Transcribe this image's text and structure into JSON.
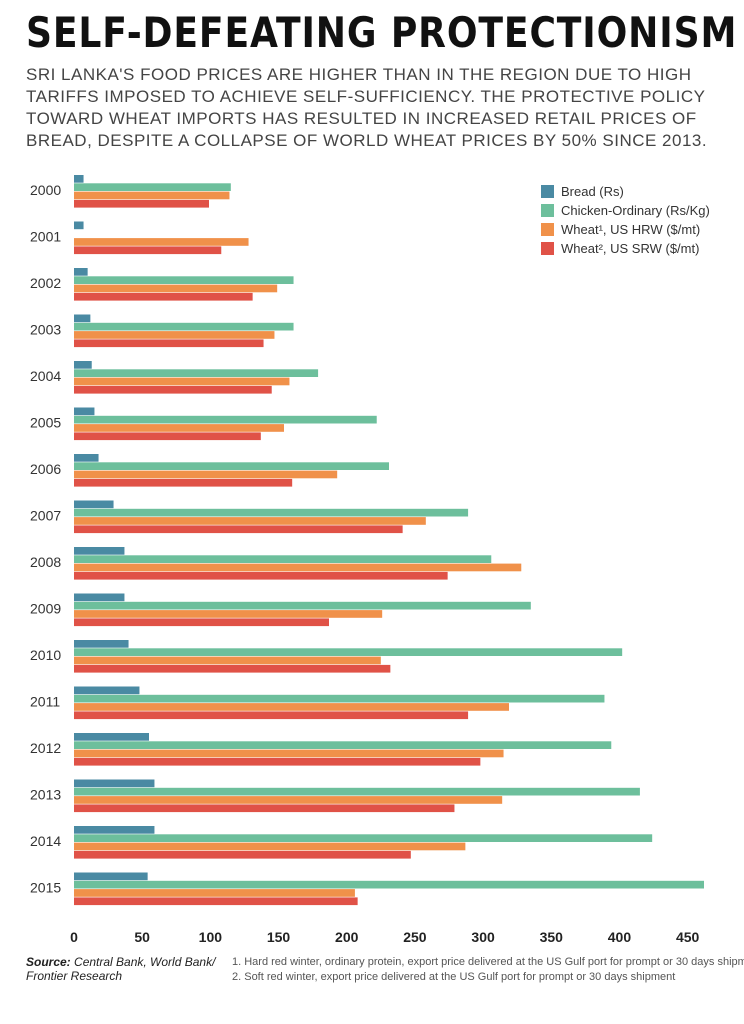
{
  "header": {
    "title": "SELF-DEFEATING PROTECTIONISM",
    "subtitle": "SRI LANKA'S FOOD PRICES ARE HIGHER THAN IN THE REGION DUE TO HIGH TARIFFS IMPOSED TO ACHIEVE SELF-SUFFICIENCY. THE PROTECTIVE POLICY TOWARD WHEAT IMPORTS HAS RESULTED IN INCREASED RETAIL PRICES OF BREAD, DESPITE A COLLAPSE OF WORLD WHEAT PRICES BY 50% SINCE 2013."
  },
  "footer": {
    "source_label": "Source:",
    "source_text": " Central Bank, World Bank/ Frontier Research",
    "notes": [
      "1. Hard red winter, ordinary protein, export price delivered at the US Gulf port for prompt or 30 days shipment",
      "2. Soft red winter, export price delivered at the US Gulf port for prompt or 30 days shipment"
    ]
  },
  "chart_data": {
    "type": "bar",
    "orientation": "horizontal",
    "categories": [
      "2000",
      "2001",
      "2002",
      "2003",
      "2004",
      "2005",
      "2006",
      "2007",
      "2008",
      "2009",
      "2010",
      "2011",
      "2012",
      "2013",
      "2014",
      "2015"
    ],
    "series": [
      {
        "name": "Bread (Rs)",
        "color": "#4a8aa3",
        "values": [
          7,
          7,
          10,
          12,
          13,
          15,
          18,
          29,
          37,
          37,
          40,
          48,
          55,
          59,
          59,
          54
        ]
      },
      {
        "name": "Chicken-Ordinary (Rs/Kg)",
        "color": "#6dbf9c",
        "values": [
          115,
          0,
          161,
          161,
          179,
          222,
          231,
          289,
          306,
          335,
          402,
          389,
          394,
          415,
          424,
          462
        ]
      },
      {
        "name": "Wheat¹, US HRW ($/mt)",
        "color": "#f0914a",
        "values": [
          114,
          128,
          149,
          147,
          158,
          154,
          193,
          258,
          328,
          226,
          225,
          319,
          315,
          314,
          287,
          206
        ]
      },
      {
        "name": "Wheat², US SRW ($/mt)",
        "color": "#e05247",
        "values": [
          99,
          108,
          131,
          139,
          145,
          137,
          160,
          241,
          274,
          187,
          232,
          289,
          298,
          279,
          247,
          208
        ]
      }
    ],
    "x_ticks": [
      0,
      50,
      100,
      150,
      200,
      250,
      300,
      350,
      400,
      450
    ],
    "xlim": [
      0,
      462
    ],
    "legend": "top-right",
    "grid": false
  }
}
